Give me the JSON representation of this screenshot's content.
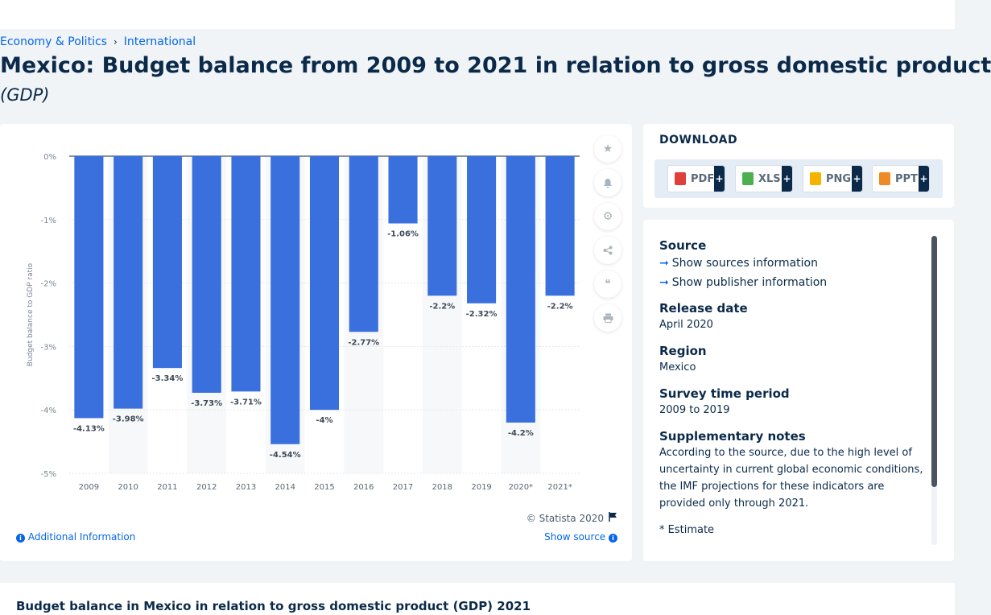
{
  "breadcrumb": {
    "item1": "Economy & Politics",
    "item2": "International"
  },
  "page": {
    "title": "Mexico: Budget balance from 2009 to 2021 in relation to gross domestic product",
    "subtitle": "(GDP)"
  },
  "chart_data": {
    "type": "bar",
    "categories": [
      "2009",
      "2010",
      "2011",
      "2012",
      "2013",
      "2014",
      "2015",
      "2016",
      "2017",
      "2018",
      "2019",
      "2020*",
      "2021*"
    ],
    "values": [
      -4.13,
      -3.98,
      -3.34,
      -3.73,
      -3.71,
      -4.54,
      -4,
      -2.77,
      -1.06,
      -2.2,
      -2.32,
      -4.2,
      -2.2
    ],
    "value_labels": [
      "-4.13%",
      "-3.98%",
      "-3.34%",
      "-3.73%",
      "-3.71%",
      "-4.54%",
      "-4%",
      "-2.77%",
      "-1.06%",
      "-2.2%",
      "-2.32%",
      "-4.2%",
      "-2.2%"
    ],
    "ylabel": "Budget balance to GDP ratio",
    "yticks": [
      0,
      -1,
      -2,
      -3,
      -4,
      -5
    ],
    "ytick_labels": [
      "0%",
      "-1%",
      "-2%",
      "-3%",
      "-4%",
      "-5%"
    ],
    "ylim": [
      -5,
      0
    ],
    "bar_color": "#3a6fde",
    "grid": true
  },
  "chart_footer": {
    "copyright": "© Statista 2020",
    "additional_info": "Additional Information",
    "show_source": "Show source"
  },
  "tools": [
    "star-icon",
    "bell-icon",
    "gear-icon",
    "share-icon",
    "quote-icon",
    "print-icon"
  ],
  "download": {
    "title": "DOWNLOAD",
    "buttons": [
      {
        "label": "PDF",
        "color": "#e0403a"
      },
      {
        "label": "XLS",
        "color": "#4caf50"
      },
      {
        "label": "PNG",
        "color": "#f4b400"
      },
      {
        "label": "PPT",
        "color": "#f08a24"
      }
    ],
    "plus": "+"
  },
  "source_panel": {
    "source_heading": "Source",
    "show_sources": "Show sources information",
    "show_publisher": "Show publisher information",
    "release_heading": "Release date",
    "release_value": "April 2020",
    "region_heading": "Region",
    "region_value": "Mexico",
    "survey_heading": "Survey time period",
    "survey_value": "2009 to 2019",
    "notes_heading": "Supplementary notes",
    "notes_value": "According to the source, due to the high level of uncertainty in current global economic conditions, the IMF projections for these indicators are provided only through 2021.",
    "estimate_note": "* Estimate"
  },
  "related": {
    "title": "Budget balance in Mexico in relation to gross domestic product (GDP) 2021"
  }
}
